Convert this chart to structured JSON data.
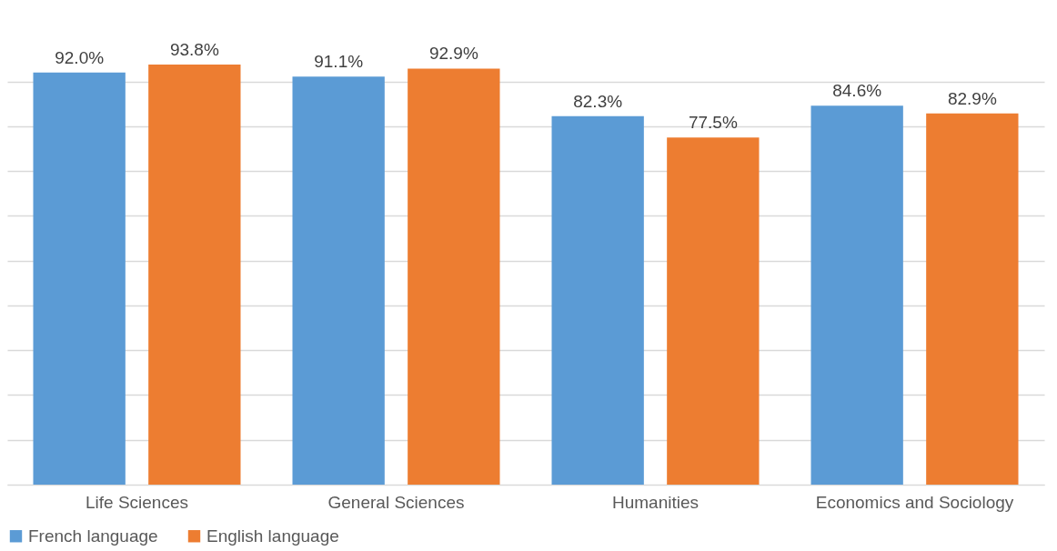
{
  "chart_data": {
    "type": "bar",
    "categories": [
      "Life Sciences",
      "General Sciences",
      "Humanities",
      "Economics and Sociology"
    ],
    "series": [
      {
        "name": "French language",
        "color": "#5b9bd5",
        "values": [
          92.0,
          91.1,
          82.3,
          84.6
        ],
        "value_labels": [
          "92.0%",
          "91.1%",
          "82.3%",
          "84.6%"
        ]
      },
      {
        "name": "English language",
        "color": "#ed7d31",
        "values": [
          93.8,
          92.9,
          77.5,
          82.9
        ],
        "value_labels": [
          "93.8%",
          "92.9%",
          "77.5%",
          "82.9%"
        ]
      }
    ],
    "yticks": [
      {
        "value": 0,
        "label": null
      },
      {
        "value": 10,
        "label": null
      },
      {
        "value": 20,
        "label": null
      },
      {
        "value": 30,
        "label": null
      },
      {
        "value": 40,
        "label": null
      },
      {
        "value": 50,
        "label": null
      },
      {
        "value": 60,
        "label": null
      },
      {
        "value": 70,
        "label": null
      },
      {
        "value": 80,
        "label": null
      },
      {
        "value": 90,
        "label": null
      }
    ],
    "grid": "y",
    "tick_labels": "x",
    "legend": "bottom"
  }
}
